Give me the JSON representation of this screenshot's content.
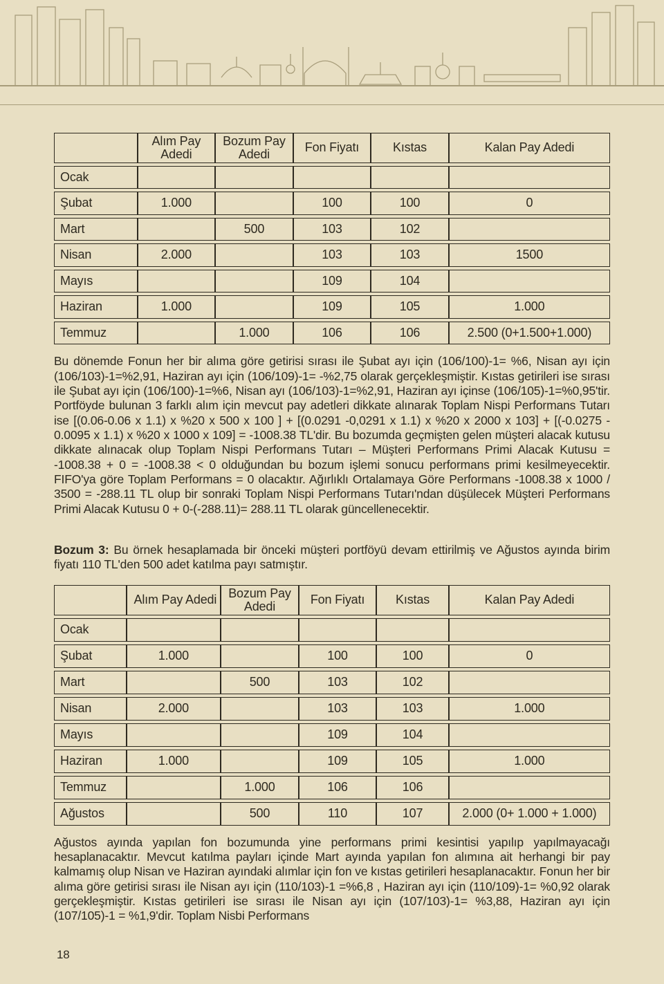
{
  "colors": {
    "background": "#e8dfc3",
    "text": "#2e2a20",
    "table_border": "#2e2a20",
    "skyline_stroke": "#a89d7b"
  },
  "typography": {
    "body_fontsize_pt": 13,
    "table_fontsize_pt": 13.5,
    "font_family": "Helvetica Neue"
  },
  "table1": {
    "headers": {
      "col0": "",
      "col1": "Alım Pay\nAdedi",
      "col2": "Bozum Pay\nAdedi",
      "col3": "Fon Fiyatı",
      "col4": "Kıstas",
      "col5": "Kalan Pay Adedi"
    },
    "col_widths_pct": [
      15,
      14,
      14,
      14,
      14,
      29
    ],
    "rows": [
      {
        "m": "Ocak",
        "a": "",
        "b": "",
        "f": "",
        "k": "",
        "p": ""
      },
      {
        "m": "Şubat",
        "a": "1.000",
        "b": "",
        "f": "100",
        "k": "100",
        "p": "0"
      },
      {
        "m": "Mart",
        "a": "",
        "b": "500",
        "f": "103",
        "k": "102",
        "p": ""
      },
      {
        "m": "Nisan",
        "a": "2.000",
        "b": "",
        "f": "103",
        "k": "103",
        "p": "1500"
      },
      {
        "m": "Mayıs",
        "a": "",
        "b": "",
        "f": "109",
        "k": "104",
        "p": ""
      },
      {
        "m": "Haziran",
        "a": "1.000",
        "b": "",
        "f": "109",
        "k": "105",
        "p": "1.000"
      },
      {
        "m": "Temmuz",
        "a": "",
        "b": "1.000",
        "f": "106",
        "k": "106",
        "p": "2.500 (0+1.500+1.000)"
      }
    ]
  },
  "para1": "Bu dönemde Fonun her bir alıma göre getirisi sırası ile Şubat ayı için (106/100)-1= %6, Nisan ayı için (106/103)-1=%2,91, Haziran ayı için (106/109)-1= -%2,75 olarak gerçekleşmiştir. Kıstas getirileri ise sırası ile Şubat ayı için (106/100)-1=%6, Nisan ayı (106/103)-1=%2,91, Haziran ayı içinse (106/105)-1=%0,95'tir. Portföyde bulunan 3 farklı alım için mevcut pay adetleri dikkate alınarak Toplam Nispi Performans Tutarı ise [(0.06-0.06 x 1.1) x %20 x 500 x 100 ] + [(0.0291 -0,0291 x 1.1) x %20 x 2000 x 103] + [(-0.0275 - 0.0095 x 1.1) x %20 x 1000 x 109] = -1008.38 TL'dir. Bu bozumda geçmişten gelen müşteri alacak kutusu dikkate alınacak olup Toplam Nispi Performans Tutarı – Müşteri Performans Primi Alacak Kutusu = -1008.38 + 0 = -1008.38 < 0 olduğundan bu bozum işlemi sonucu performans primi kesilmeyecektir. FIFO'ya göre Toplam Performans = 0 olacaktır. Ağırlıklı Ortalamaya Göre Performans -1008.38 x 1000 / 3500 = -288.11 TL olup bir sonraki Toplam Nispi Performans Tutarı'ndan düşülecek Müşteri Performans Primi Alacak Kutusu 0 + 0-(-288.11)= 288.11 TL olarak güncellenecektir.",
  "bozum3_label": "Bozum 3:",
  "bozum3_text": " Bu örnek hesaplamada bir önceki müşteri portföyü devam ettirilmiş ve Ağustos ayında birim fiyatı 110 TL'den 500 adet katılma payı satmıştır.",
  "table2": {
    "headers": {
      "col0": "",
      "col1": "Alım Pay Adedi",
      "col2": "Bozum Pay\nAdedi",
      "col3": "Fon Fiyatı",
      "col4": "Kıstas",
      "col5": "Kalan Pay Adedi"
    },
    "col_widths_pct": [
      13,
      17,
      14,
      14,
      13,
      29
    ],
    "rows": [
      {
        "m": "Ocak",
        "a": "",
        "b": "",
        "f": "",
        "k": "",
        "p": ""
      },
      {
        "m": "Şubat",
        "a": "1.000",
        "b": "",
        "f": "100",
        "k": "100",
        "p": "0"
      },
      {
        "m": "Mart",
        "a": "",
        "b": "500",
        "f": "103",
        "k": "102",
        "p": ""
      },
      {
        "m": "Nisan",
        "a": "2.000",
        "b": "",
        "f": "103",
        "k": "103",
        "p": "1.000"
      },
      {
        "m": "Mayıs",
        "a": "",
        "b": "",
        "f": "109",
        "k": "104",
        "p": ""
      },
      {
        "m": "Haziran",
        "a": "1.000",
        "b": "",
        "f": "109",
        "k": "105",
        "p": "1.000"
      },
      {
        "m": "Temmuz",
        "a": "",
        "b": "1.000",
        "f": "106",
        "k": "106",
        "p": ""
      },
      {
        "m": "Ağustos",
        "a": "",
        "b": "500",
        "f": "110",
        "k": "107",
        "p": "2.000 (0+ 1.000 + 1.000)"
      }
    ]
  },
  "para2": "Ağustos ayında yapılan fon bozumunda yine performans primi kesintisi yapılıp yapılmayacağı hesaplanacaktır. Mevcut katılma payları içinde Mart ayında yapılan fon alımına ait herhangi bir pay kalmamış olup Nisan ve Haziran ayındaki alımlar için fon ve kıstas getirileri hesaplanacaktır. Fonun her bir alıma göre getirisi sırası ile Nisan ayı için (110/103)-1 =%6,8 , Haziran ayı için (110/109)-1= %0,92 olarak gerçekleşmiştir. Kıstas getirileri ise sırası ile Nisan ayı için (107/103)-1= %3,88, Haziran ayı için (107/105)-1 = %1,9'dir. Toplam Nisbi Performans",
  "page_number": "18"
}
